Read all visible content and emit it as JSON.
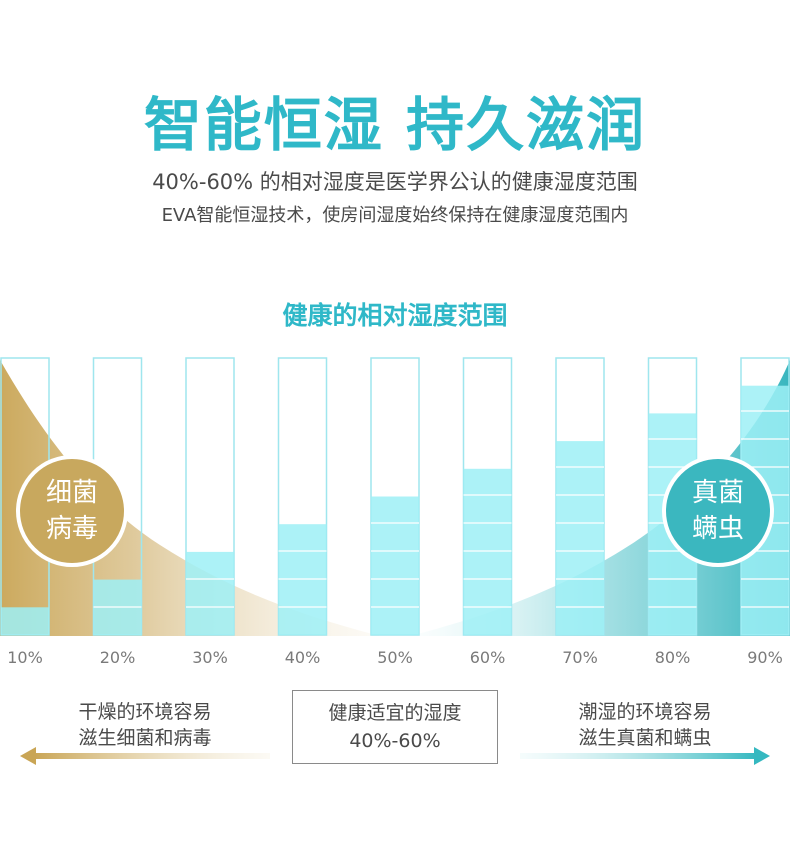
{
  "headline": "智能恒湿 持久滋润",
  "subtitle_line1": "40%-60% 的相对湿度是医学界公认的健康湿度范围",
  "subtitle_line2": "EVA智能恒湿技术，使房间湿度始终保持在健康湿度范围内",
  "chart_data": {
    "type": "bar",
    "title": "健康的相对湿度范围",
    "categories": [
      "10%",
      "20%",
      "30%",
      "40%",
      "50%",
      "60%",
      "70%",
      "80%",
      "90%"
    ],
    "values": [
      10,
      20,
      30,
      40,
      50,
      60,
      70,
      80,
      90
    ],
    "ylim": [
      0,
      100
    ]
  },
  "left_circle": {
    "line1": "细菌",
    "line2": "病毒"
  },
  "right_circle": {
    "line1": "真菌",
    "line2": "螨虫"
  },
  "dry_note": {
    "line1": "干燥的环境容易",
    "line2": "滋生细菌和病毒"
  },
  "healthy_note": {
    "line1": "健康适宜的湿度",
    "line2": "40%-60%"
  },
  "wet_note": {
    "line1": "潮湿的环境容易",
    "line2": "滋生真菌和螨虫"
  },
  "colors": {
    "accent": "#2fb8c8",
    "bar_fill": "#9ef0f6",
    "bar_outline": "#9fe6ee",
    "gold": "#c8a85e",
    "teal": "#3bb7bf"
  }
}
